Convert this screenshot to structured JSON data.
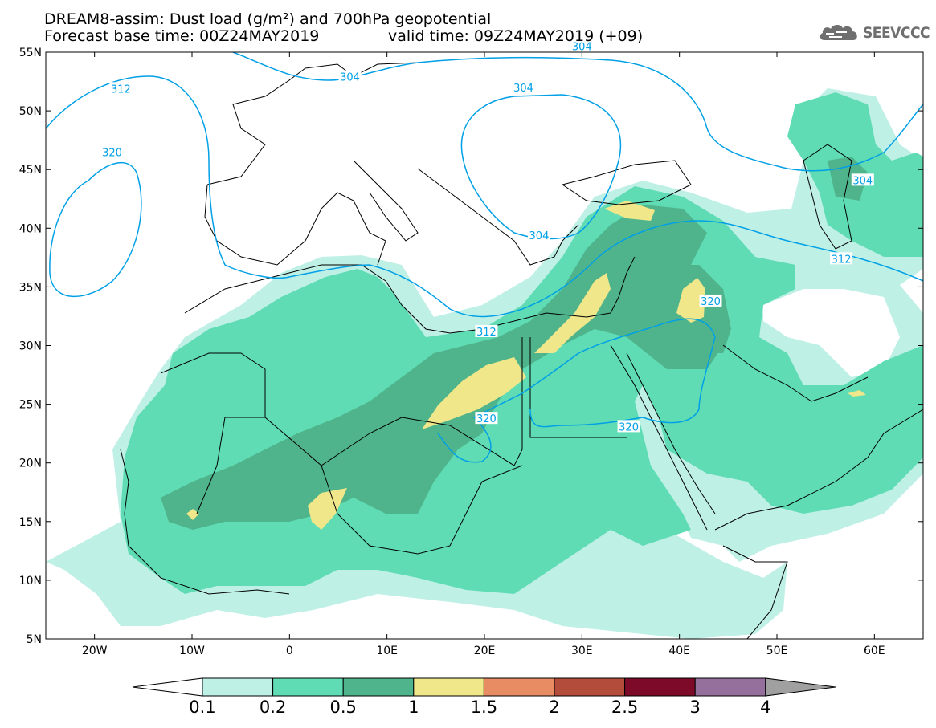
{
  "header": {
    "title_line1": "DREAM8-assim: Dust load (g/m²) and 700hPa geopotential",
    "base_time": "Forecast base time: 00Z24MAY2019",
    "valid_time": "valid time: 09Z24MAY2019 (+09)"
  },
  "logo": {
    "text": "SEEVCCC",
    "icon": "cloud-icon"
  },
  "map": {
    "lat_labels": [
      "55N",
      "50N",
      "45N",
      "40N",
      "35N",
      "30N",
      "25N",
      "20N",
      "15N",
      "10N",
      "5N"
    ],
    "lat_values": [
      55,
      50,
      45,
      40,
      35,
      30,
      25,
      20,
      15,
      10,
      5
    ],
    "lon_labels": [
      "20W",
      "10W",
      "0",
      "10E",
      "20E",
      "30E",
      "40E",
      "50E",
      "60E"
    ],
    "lon_values": [
      -20,
      -10,
      0,
      10,
      20,
      30,
      40,
      50,
      60
    ],
    "contour_labels": [
      {
        "text": "312",
        "lon": -17.3,
        "lat": 51.9
      },
      {
        "text": "320",
        "lon": -18.2,
        "lat": 46.5
      },
      {
        "text": "304",
        "lon": 30,
        "lat": 55.5
      },
      {
        "text": "304",
        "lon": 6.2,
        "lat": 52.9
      },
      {
        "text": "304",
        "lon": 24,
        "lat": 52
      },
      {
        "text": "304",
        "lon": 25.6,
        "lat": 39.4
      },
      {
        "text": "312",
        "lon": 20.2,
        "lat": 31.2
      },
      {
        "text": "320",
        "lon": 43.2,
        "lat": 33.8
      },
      {
        "text": "320",
        "lon": 20.2,
        "lat": 23.8
      },
      {
        "text": "320",
        "lon": 34.8,
        "lat": 23.1
      },
      {
        "text": "304",
        "lon": 58.8,
        "lat": 44.1
      },
      {
        "text": "312",
        "lon": 56.6,
        "lat": 37.4
      }
    ]
  },
  "colorbar": {
    "levels": [
      "0.1",
      "0.2",
      "0.5",
      "1",
      "1.5",
      "2",
      "2.5",
      "3",
      "4"
    ],
    "colors": [
      "#bff0e6",
      "#5fdcb4",
      "#4fb48c",
      "#f0e68a",
      "#e88c64",
      "#b44c3c",
      "#7d0a28",
      "#96709c"
    ],
    "under_color": "#ffffff",
    "over_color": "#a0a0a0"
  },
  "colors": {
    "contour": "#00a0e6",
    "dust_low": "#bff0e6",
    "dust_mid": "#5fdcb4",
    "dust_high": "#4fb48c",
    "dust_peak": "#f0e68a"
  }
}
